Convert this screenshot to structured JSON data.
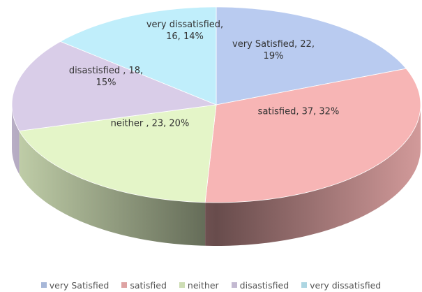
{
  "chart_data": {
    "type": "pie",
    "categories": [
      "very Satisfied",
      "satisfied",
      "neither",
      "disastisfied",
      "very dissatisfied"
    ],
    "values": [
      22,
      37,
      23,
      18,
      16
    ],
    "value_labels": [
      "very Satisfied, 22, 19%",
      "satisfied, 37, 32%",
      "neither , 23, 20%",
      "disastisfied , 18, 15%",
      "very dissatisfied, 16, 14%"
    ],
    "colors": [
      "#b9cbf0",
      "#f7b5b5",
      "#e4f5c8",
      "#d9cde8",
      "#c0eefb"
    ],
    "legend": "bottom"
  }
}
